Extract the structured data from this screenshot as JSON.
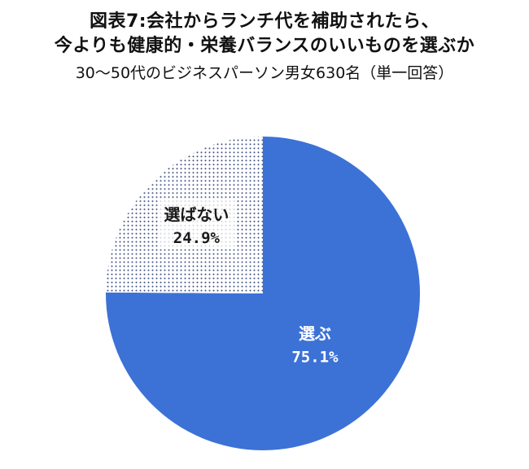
{
  "title_line_1": "図表7:会社からランチ代を補助されたら、",
  "title_line_2": "今よりも健康的・栄養バランスのいいものを選ぶか",
  "subtitle": "30〜50代のビジネスパーソン男女630名（単一回答）",
  "chart_data": {
    "type": "pie",
    "title": "図表7:会社からランチ代を補助されたら、今よりも健康的・栄養バランスのいいものを選ぶか",
    "subtitle": "30〜50代のビジネスパーソン男女630名（単一回答）",
    "start_angle": "12 o'clock",
    "direction": "clockwise",
    "slices": [
      {
        "label": "選ぶ",
        "value": 75.1,
        "value_label": "75.1%",
        "color": "#3c72d6",
        "fill": "solid",
        "label_color": "#ffffff"
      },
      {
        "label": "選ばない",
        "value": 24.9,
        "value_label": "24.9%",
        "color": "#3d4f80",
        "fill": "dotted",
        "label_color": "#1a1a1a"
      }
    ]
  }
}
